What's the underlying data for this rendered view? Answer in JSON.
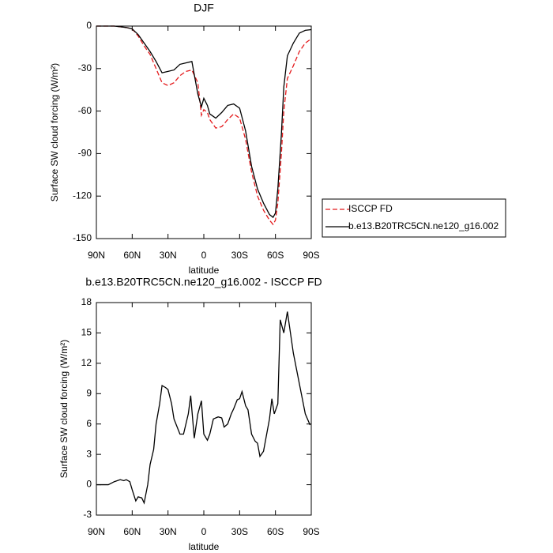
{
  "chart_data": [
    {
      "type": "line",
      "title": "DJF",
      "xlabel": "latitude",
      "ylabel": "Surface SW cloud forcing (W/m²)",
      "x": [
        90,
        85,
        80,
        75,
        70,
        65,
        60,
        55,
        50,
        45,
        40,
        35,
        30,
        25,
        20,
        15,
        10,
        5,
        2,
        0,
        -3,
        -5,
        -10,
        -15,
        -20,
        -25,
        -30,
        -35,
        -40,
        -45,
        -50,
        -55,
        -58,
        -60,
        -62,
        -65,
        -67,
        -70,
        -75,
        -80,
        -85,
        -90
      ],
      "xlim": [
        90,
        -90
      ],
      "xticks": [
        {
          "value": 90,
          "label": "90N"
        },
        {
          "value": 60,
          "label": "60N"
        },
        {
          "value": 30,
          "label": "30N"
        },
        0,
        {
          "value": -30,
          "label": "30S"
        },
        {
          "value": -60,
          "label": "60S"
        },
        {
          "value": -90,
          "label": "90S"
        }
      ],
      "ylim": [
        -150,
        0
      ],
      "yticks": [
        -150,
        -120,
        -90,
        -60,
        -30,
        0
      ],
      "legend": "outside-right",
      "series": [
        {
          "name": "ISCCP FD",
          "color": "#e41a1c",
          "style": "dashed",
          "values": [
            0,
            0,
            0,
            0,
            -0.5,
            -1,
            -2,
            -7,
            -14,
            -20,
            -30,
            -40,
            -42,
            -40,
            -35,
            -32,
            -31,
            -40,
            -63,
            -59,
            -61,
            -66,
            -72,
            -71,
            -66,
            -62,
            -65,
            -80,
            -103,
            -120,
            -130,
            -137,
            -140,
            -137,
            -125,
            -90,
            -60,
            -37,
            -28,
            -18,
            -12,
            -9
          ]
        },
        {
          "name": "b.e13.B20TRC5CN.ne120_g16.002",
          "color": "#000000",
          "style": "solid",
          "values": [
            0,
            0,
            0,
            0,
            -0.5,
            -1,
            -2,
            -6,
            -12,
            -18,
            -25,
            -33,
            -32,
            -31,
            -27,
            -26,
            -25,
            -48,
            -57,
            -51,
            -56,
            -62,
            -65,
            -61,
            -56,
            -55,
            -58,
            -74,
            -99,
            -115,
            -125,
            -133,
            -135,
            -132,
            -115,
            -76,
            -43,
            -21,
            -12,
            -5,
            -3,
            -2.5
          ]
        }
      ]
    },
    {
      "type": "line",
      "title": "b.e13.B20TRC5CN.ne120_g16.002 - ISCCP FD",
      "xlabel": "latitude",
      "ylabel": "Surface SW cloud forcing (W/m²)",
      "x": [
        90,
        85,
        80,
        75,
        70,
        67,
        65,
        62,
        60,
        57,
        55,
        52,
        50,
        47,
        45,
        42,
        40,
        37,
        35,
        32,
        30,
        27,
        25,
        20,
        17,
        13,
        11,
        8,
        5,
        2,
        0,
        -3,
        -5,
        -8,
        -12,
        -15,
        -17,
        -20,
        -23,
        -25,
        -28,
        -30,
        -32,
        -35,
        -37,
        -40,
        -43,
        -45,
        -47,
        -50,
        -55,
        -57,
        -59,
        -62,
        -64,
        -67,
        -70,
        -75,
        -80,
        -85,
        -89
      ],
      "xlim": [
        90,
        -90
      ],
      "xticks": [
        {
          "value": 90,
          "label": "90N"
        },
        {
          "value": 60,
          "label": "60N"
        },
        {
          "value": 30,
          "label": "30N"
        },
        0,
        {
          "value": -30,
          "label": "30S"
        },
        {
          "value": -60,
          "label": "60S"
        },
        {
          "value": -90,
          "label": "90S"
        }
      ],
      "ylim": [
        -3,
        18
      ],
      "yticks": [
        -3,
        0,
        3,
        6,
        9,
        12,
        15,
        18
      ],
      "series": [
        {
          "color": "#000000",
          "style": "solid",
          "values": [
            0,
            0,
            0,
            0.3,
            0.5,
            0.4,
            0.5,
            0.3,
            -0.5,
            -1.6,
            -1.2,
            -1.3,
            -1.8,
            0,
            2,
            3.5,
            6,
            8,
            9.8,
            9.6,
            9.4,
            8,
            6.5,
            5,
            5,
            7,
            8.8,
            4.6,
            7,
            8.3,
            5,
            4.4,
            5,
            6.5,
            6.7,
            6.6,
            5.7,
            6,
            7,
            7.5,
            8.4,
            8.5,
            9.2,
            7.8,
            7.4,
            5,
            4.3,
            4.1,
            2.8,
            3.3,
            6.5,
            8.5,
            7,
            8,
            16.3,
            15,
            17.1,
            13,
            10,
            7,
            5.9
          ]
        }
      ]
    }
  ]
}
